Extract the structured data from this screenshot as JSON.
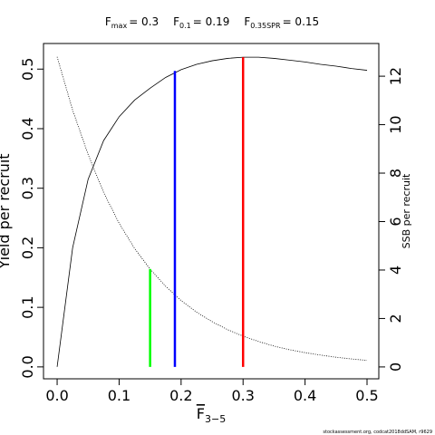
{
  "chart_data": {
    "type": "line",
    "xlabel": {
      "text": "F",
      "subscript": "3−5"
    },
    "ylabel": "Yield per recruit",
    "y2label": "SSB per recruit",
    "footnote": "stockassessment.org, codcat2018ddSAM, r9629",
    "x": [
      0,
      0.025,
      0.05,
      0.075,
      0.1,
      0.125,
      0.15,
      0.175,
      0.2,
      0.225,
      0.25,
      0.275,
      0.3,
      0.325,
      0.35,
      0.375,
      0.4,
      0.425,
      0.45,
      0.475,
      0.5
    ],
    "series": [
      {
        "color": "#000000",
        "style": "solid",
        "axis": "y",
        "values": [
          0,
          0.2,
          0.315,
          0.38,
          0.42,
          0.448,
          0.468,
          0.486,
          0.499,
          0.508,
          0.514,
          0.518,
          0.52,
          0.52,
          0.518,
          0.515,
          0.512,
          0.508,
          0.505,
          0.501,
          0.498
        ]
      },
      {
        "color": "#000000",
        "style": "dotted",
        "axis": "y2",
        "values": [
          12.8,
          10.6,
          8.77,
          7.2,
          5.93,
          4.89,
          4.04,
          3.33,
          2.74,
          2.26,
          1.87,
          1.54,
          1.27,
          1.05,
          0.86,
          0.71,
          0.59,
          0.49,
          0.4,
          0.33,
          0.27
        ]
      }
    ],
    "reference_lines": [
      {
        "symbol": "F",
        "subscript": "max",
        "label": "= 0.3",
        "value": 0.3,
        "top": 0.52,
        "axis": "y",
        "color": "#ff0000"
      },
      {
        "symbol": "F",
        "subscript": "0.1",
        "label": "= 0.19",
        "value": 0.19,
        "top": 0.497,
        "axis": "y",
        "color": "#0000ff"
      },
      {
        "symbol": "F",
        "subscript": "0.35SPR",
        "label": "= 0.15",
        "value": 0.15,
        "top": 4.04,
        "axis": "y2",
        "color": "#00ff00"
      }
    ],
    "xlim": [
      -0.022,
      0.519
    ],
    "ylim": [
      -0.02,
      0.543
    ],
    "y2lim": [
      -0.49,
      13.35
    ],
    "xticks": [
      {
        "value": 0,
        "label": "0.0"
      },
      0.1,
      0.2,
      0.3,
      0.4,
      0.5
    ],
    "yticks": [
      {
        "value": 0,
        "label": "0.0"
      },
      0.1,
      0.2,
      0.3,
      0.4,
      0.5
    ],
    "y2ticks": [
      0,
      2,
      4,
      6,
      8,
      10,
      12
    ]
  }
}
